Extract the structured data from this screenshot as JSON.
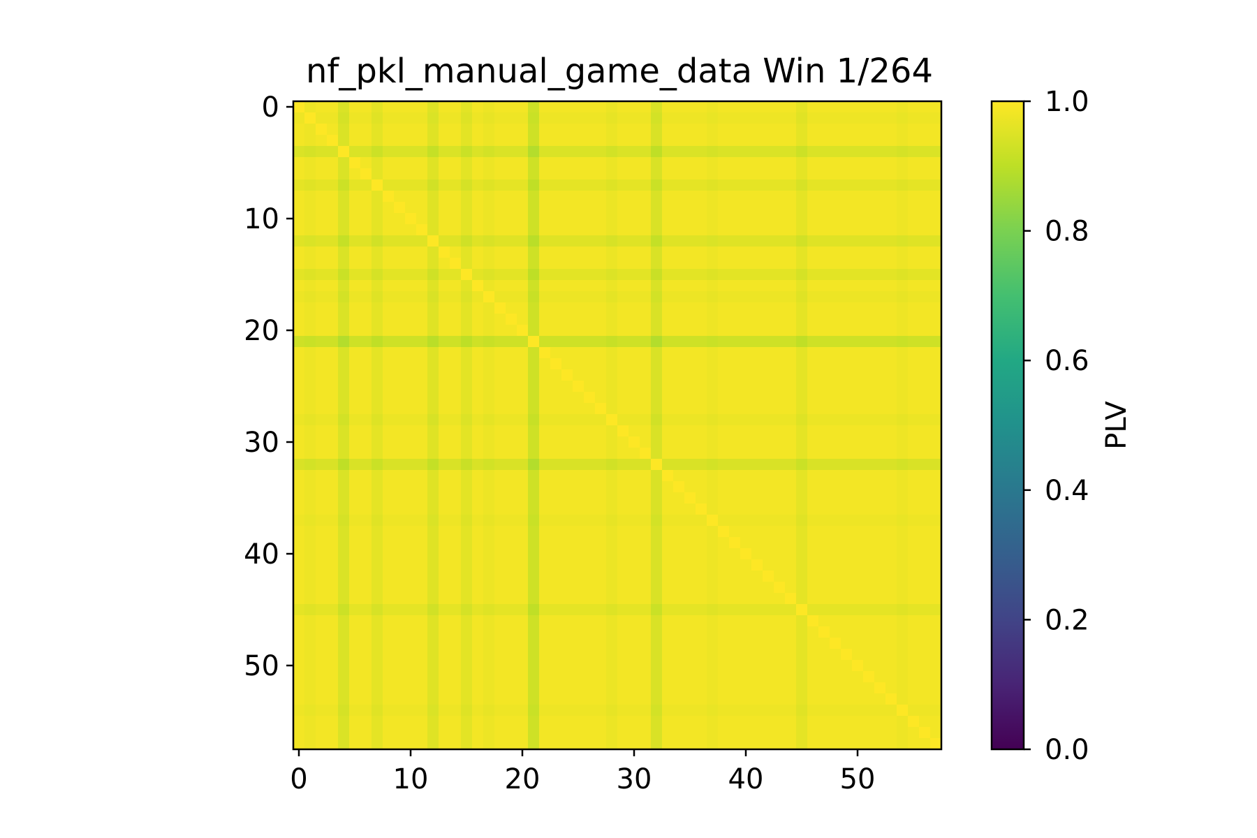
{
  "chart_data": {
    "type": "heatmap",
    "title": "nf_pkl_manual_game_data Win 1/264",
    "n": 58,
    "x_ticks": [
      0,
      10,
      20,
      30,
      40,
      50
    ],
    "y_ticks": [
      0,
      10,
      20,
      30,
      40,
      50
    ],
    "colorbar": {
      "label": "PLV",
      "colormap": "viridis",
      "range": [
        0.0,
        1.0
      ],
      "ticks": [
        "0.0",
        "0.2",
        "0.4",
        "0.6",
        "0.8",
        "1.0"
      ]
    },
    "base_value": 0.985,
    "diagonal_value": 1.0,
    "row_offsets": [
      {
        "index": 4,
        "delta": -0.04
      },
      {
        "index": 7,
        "delta": -0.022
      },
      {
        "index": 12,
        "delta": -0.032
      },
      {
        "index": 15,
        "delta": -0.025
      },
      {
        "index": 21,
        "delta": -0.058
      },
      {
        "index": 32,
        "delta": -0.042
      },
      {
        "index": 45,
        "delta": -0.022
      },
      {
        "index": 28,
        "delta": -0.012
      },
      {
        "index": 17,
        "delta": -0.01
      },
      {
        "index": 1,
        "delta": -0.008
      },
      {
        "index": 37,
        "delta": -0.008
      },
      {
        "index": 54,
        "delta": -0.008
      }
    ]
  }
}
